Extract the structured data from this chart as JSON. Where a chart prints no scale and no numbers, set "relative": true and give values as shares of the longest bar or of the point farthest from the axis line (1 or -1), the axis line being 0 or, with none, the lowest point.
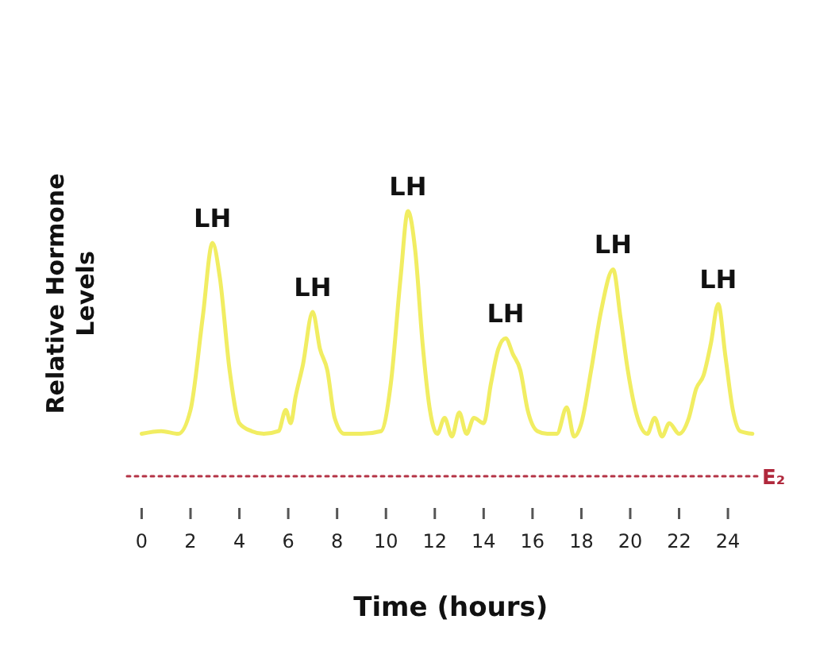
{
  "chart_data": {
    "type": "line",
    "relative": true,
    "xlabel": "Time (hours)",
    "ylabel": "Relative Hormone Levels",
    "xlim": [
      -0.6,
      25.2
    ],
    "xticks": [
      0,
      2,
      4,
      6,
      8,
      10,
      12,
      14,
      16,
      18,
      20,
      22,
      24
    ],
    "grid": false,
    "marker": "none",
    "series": [
      {
        "color": "#f0ec5a",
        "x": [
          0,
          0.8,
          1.5,
          2.0,
          2.5,
          2.9,
          3.2,
          3.6,
          4.0,
          4.5,
          5.0,
          5.6,
          5.9,
          6.1,
          6.3,
          6.6,
          7.0,
          7.3,
          7.6,
          7.9,
          8.3,
          9.0,
          9.8,
          10.2,
          10.6,
          10.9,
          11.2,
          11.5,
          11.8,
          12.1,
          12.4,
          12.7,
          13.0,
          13.3,
          13.6,
          14.0,
          14.3,
          14.6,
          14.9,
          15.2,
          15.5,
          15.8,
          16.2,
          16.6,
          17.0,
          17.4,
          17.7,
          18.0,
          18.4,
          18.8,
          19.3,
          19.6,
          19.9,
          20.3,
          20.7,
          21.0,
          21.3,
          21.6,
          22.0,
          22.4,
          22.7,
          23.0,
          23.3,
          23.6,
          23.9,
          24.2,
          24.5,
          25.0
        ],
        "values": [
          0.16,
          0.17,
          0.16,
          0.25,
          0.6,
          0.88,
          0.75,
          0.4,
          0.2,
          0.17,
          0.16,
          0.17,
          0.25,
          0.2,
          0.3,
          0.42,
          0.62,
          0.48,
          0.4,
          0.22,
          0.16,
          0.16,
          0.17,
          0.35,
          0.75,
          1.0,
          0.85,
          0.5,
          0.25,
          0.16,
          0.22,
          0.15,
          0.24,
          0.16,
          0.22,
          0.2,
          0.35,
          0.48,
          0.52,
          0.46,
          0.4,
          0.25,
          0.17,
          0.16,
          0.16,
          0.26,
          0.15,
          0.2,
          0.4,
          0.62,
          0.78,
          0.6,
          0.4,
          0.22,
          0.16,
          0.22,
          0.15,
          0.2,
          0.16,
          0.22,
          0.33,
          0.38,
          0.5,
          0.65,
          0.45,
          0.25,
          0.17,
          0.16
        ]
      },
      {
        "name": "E₂",
        "color": "#b0283c",
        "line_style": "dotted",
        "x": [
          -0.6,
          25.2
        ],
        "values": [
          0,
          0
        ]
      }
    ],
    "annotations": [
      {
        "text": "LH",
        "x": 2.9,
        "y": 0.88
      },
      {
        "text": "LH",
        "x": 7.0,
        "y": 0.62
      },
      {
        "text": "LH",
        "x": 10.9,
        "y": 1.0
      },
      {
        "text": "LH",
        "x": 14.9,
        "y": 0.52
      },
      {
        "text": "LH",
        "x": 19.3,
        "y": 0.78
      },
      {
        "text": "LH",
        "x": 23.6,
        "y": 0.65
      }
    ]
  }
}
